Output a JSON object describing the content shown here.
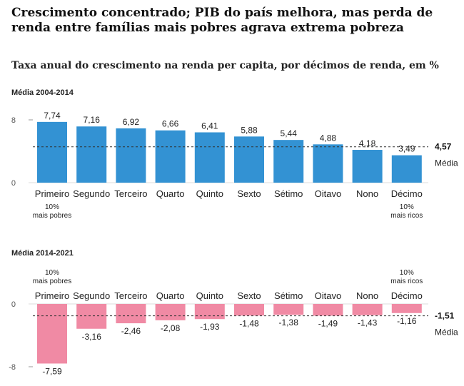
{
  "headline": "Crescimento concentrado; PIB do país melhora, mas perda de renda entre famílias mais pobres agrava extrema pobreza",
  "subtitle": "Taxa anual do crescimento na renda per capita, por décimos de renda, em %",
  "colors": {
    "positive": "#3392d3",
    "negative": "#f08aa4",
    "text": "#222222",
    "axis": "#999999"
  },
  "chart_data": [
    {
      "type": "bar",
      "title": "Média 2004-2014",
      "categories": [
        "Primeiro",
        "Segundo",
        "Terceiro",
        "Quarto",
        "Quinto",
        "Sexto",
        "Sétimo",
        "Oitavo",
        "Nono",
        "Décimo"
      ],
      "values": [
        7.74,
        7.16,
        6.92,
        6.66,
        6.41,
        5.88,
        5.44,
        4.88,
        4.18,
        3.49
      ],
      "value_labels": [
        "7,74",
        "7,16",
        "6,92",
        "6,66",
        "6,41",
        "5,88",
        "5,44",
        "4,88",
        "4,18",
        "3,49"
      ],
      "y_ticks": [
        0,
        8
      ],
      "y_tick_labels": [
        "0",
        "8"
      ],
      "ylim": [
        0,
        8
      ],
      "mean": 4.57,
      "mean_label": "4,57",
      "mean_text": "Média",
      "annotations": {
        "first": [
          "10%",
          "mais pobres"
        ],
        "last": [
          "10%",
          "mais ricos"
        ]
      },
      "color": "#3392d3"
    },
    {
      "type": "bar",
      "title": "Média 2014-2021",
      "categories": [
        "Primeiro",
        "Segundo",
        "Terceiro",
        "Quarto",
        "Quinto",
        "Sexto",
        "Sétimo",
        "Oitavo",
        "Nono",
        "Décimo"
      ],
      "values": [
        -7.59,
        -3.16,
        -2.46,
        -2.08,
        -1.93,
        -1.48,
        -1.38,
        -1.49,
        -1.43,
        -1.16
      ],
      "value_labels": [
        "-7,59",
        "-3,16",
        "-2,46",
        "-2,08",
        "-1,93",
        "-1,48",
        "-1,38",
        "-1,49",
        "-1,43",
        "-1,16"
      ],
      "y_ticks": [
        0,
        -8
      ],
      "y_tick_labels": [
        "0",
        "-8"
      ],
      "ylim": [
        -8,
        0
      ],
      "mean": -1.51,
      "mean_label": "-1,51",
      "mean_text": "Média",
      "annotations": {
        "first": [
          "10%",
          "mais pobres"
        ],
        "last": [
          "10%",
          "mais ricos"
        ]
      },
      "color": "#f08aa4"
    }
  ]
}
